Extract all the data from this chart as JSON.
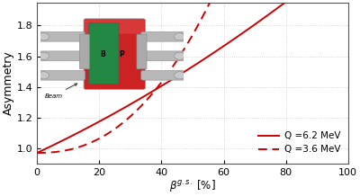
{
  "ylabel": "Asymmetry",
  "xlim": [
    0,
    100
  ],
  "ylim": [
    0.9,
    1.95
  ],
  "yticks": [
    1.0,
    1.2,
    1.4,
    1.6,
    1.8
  ],
  "xticks": [
    0,
    20,
    40,
    60,
    80,
    100
  ],
  "grid_color": "#cccccc",
  "line_color": "#cc0000",
  "background_color": "#ffffff",
  "legend_solid": "Q =6.2 MeV",
  "legend_dashed": "Q =3.6 MeV",
  "figsize": [
    4.0,
    2.18
  ],
  "dpi": 100
}
